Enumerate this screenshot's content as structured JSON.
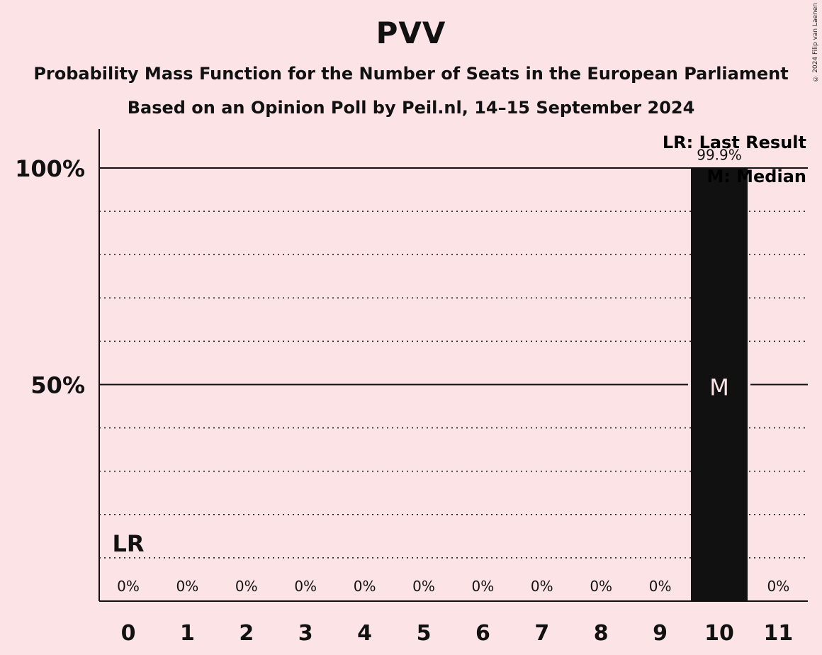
{
  "title": "PVV",
  "subtitle1": "Probability Mass Function for the Number of Seats in the European Parliament",
  "subtitle2": "Based on an Opinion Poll by Peil.nl, 14–15 September 2024",
  "copyright": "© 2024 Filip van Laenen",
  "legend": {
    "last_result": "LR: Last Result",
    "median": "M: Median"
  },
  "colors": {
    "background": "#fce4e6",
    "bar": "#111111",
    "text": "#111111",
    "median_text": "#fce4e6"
  },
  "chart_data": {
    "type": "bar",
    "categories": [
      "0",
      "1",
      "2",
      "3",
      "4",
      "5",
      "6",
      "7",
      "8",
      "9",
      "10",
      "11"
    ],
    "values": [
      0,
      0,
      0,
      0,
      0,
      0,
      0,
      0,
      0,
      0,
      99.9,
      0
    ],
    "value_labels": [
      "0%",
      "0%",
      "0%",
      "0%",
      "0%",
      "0%",
      "0%",
      "0%",
      "0%",
      "0%",
      "99.9%",
      "0%"
    ],
    "y_ticks": [
      50,
      100
    ],
    "y_tick_labels": [
      "50%",
      "100%"
    ],
    "ylim": [
      0,
      100
    ],
    "grid": "dotted every 10%, solid at 50% and 100%",
    "last_result_seat": "0",
    "last_result_marker": "LR",
    "median_seat": "10",
    "median_marker": "M"
  }
}
